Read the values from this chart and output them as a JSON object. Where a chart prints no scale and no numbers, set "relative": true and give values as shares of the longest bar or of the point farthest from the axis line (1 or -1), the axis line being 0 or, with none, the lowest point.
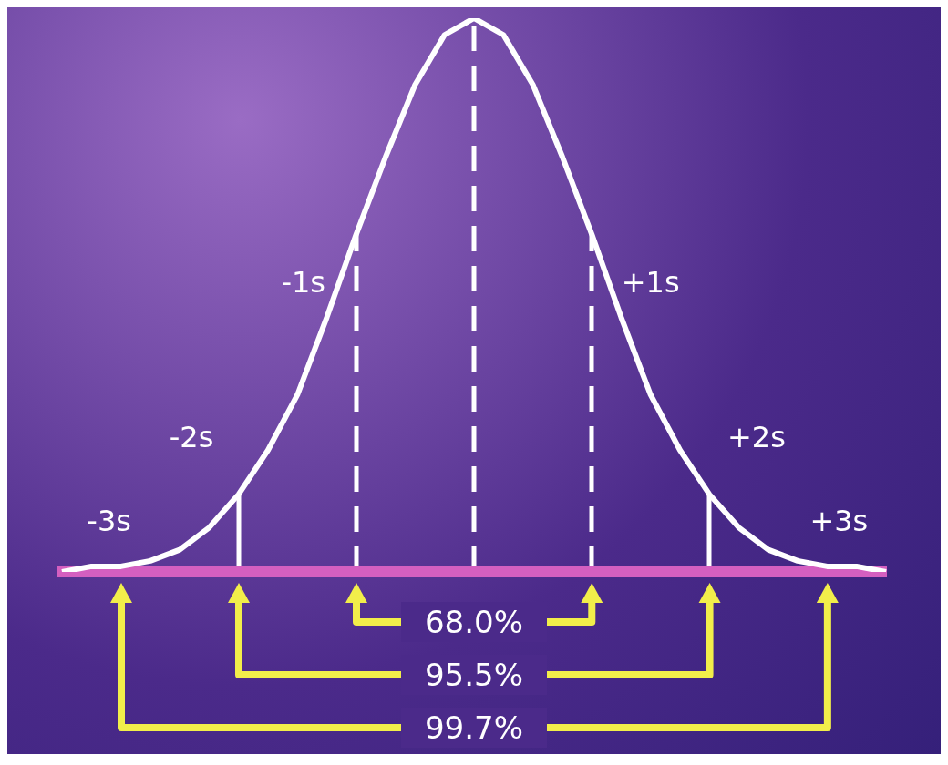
{
  "chart_data": {
    "type": "line",
    "relative": true,
    "tick_labels": false,
    "grid": false,
    "legend": false,
    "marker": "none",
    "categories": [
      null,
      null,
      null,
      null,
      null,
      null,
      null,
      null,
      null,
      null,
      null,
      null,
      null,
      null,
      null,
      null,
      null,
      null,
      null,
      null,
      null,
      null,
      null,
      null,
      null,
      null,
      null,
      null,
      null
    ],
    "series": [
      {
        "color": "#ffffff",
        "values": [
          0,
          0.01,
          0.01,
          0.02,
          0.04,
          0.08,
          0.14,
          0.22,
          0.32,
          0.46,
          0.61,
          0.75,
          0.88,
          0.97,
          1,
          0.97,
          0.88,
          0.75,
          0.61,
          0.46,
          0.32,
          0.22,
          0.14,
          0.08,
          0.04,
          0.02,
          0.01,
          0.01,
          0
        ]
      }
    ],
    "annotations": [
      "-3s",
      "-2s",
      "-1s",
      "+1s",
      "+2s",
      "+3s",
      "68.0%",
      "95.5%",
      "99.7%"
    ]
  }
}
